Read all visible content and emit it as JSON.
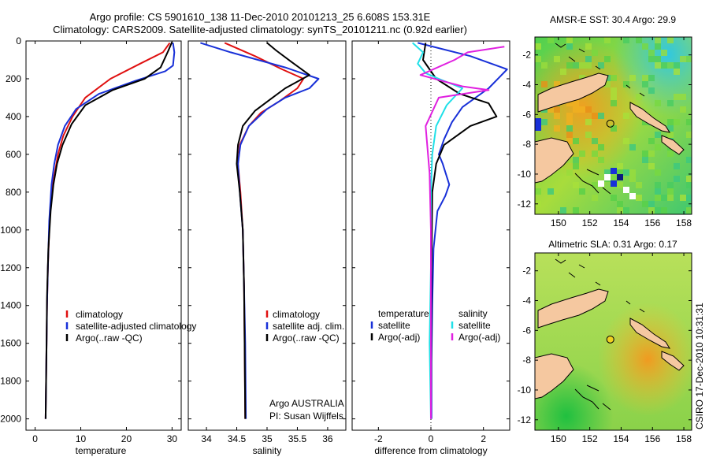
{
  "header": {
    "line1": "Argo profile: CS 5901610_138 11-Dec-2010 20101213_25 6.608S 153.31E",
    "line2": "Climatology: CARS2009. Satellite-adjusted climatology: synTS_20101211.nc (0.92d earlier)"
  },
  "side_label": "CSIRO 17-Dec-2010 10:31:31",
  "colors": {
    "red": "#e01010",
    "blue": "#1830d8",
    "black": "#000000",
    "cyan": "#20e0e8",
    "magenta": "#e020e0",
    "land": "#f5c8a0"
  },
  "chart_data": [
    {
      "type": "line",
      "xlabel": "temperature",
      "xlim": [
        -2,
        32
      ],
      "ylim": [
        0,
        2060
      ],
      "xticks": [
        0,
        10,
        20,
        30
      ],
      "yticks": [
        0,
        200,
        400,
        600,
        800,
        1000,
        1200,
        1400,
        1600,
        1800,
        2000
      ],
      "legend": [
        "climatology",
        "satellite-adjusted climatology",
        "Argo(..raw -QC)"
      ],
      "series": [
        {
          "name": "climatology",
          "color": "red",
          "x": [
            29.5,
            28,
            23,
            16.5,
            11,
            8.2,
            6.2,
            5,
            4.3,
            3.6,
            3.1,
            2.8,
            2.6,
            2.5,
            2.4,
            2.3
          ],
          "y": [
            10,
            60,
            120,
            200,
            300,
            400,
            500,
            600,
            700,
            800,
            1000,
            1200,
            1400,
            1600,
            1800,
            2000
          ]
        },
        {
          "name": "satellite-adjusted climatology",
          "color": "blue",
          "x": [
            30.2,
            30.5,
            30.2,
            28.5,
            22,
            14,
            9,
            6.5,
            5,
            4.2,
            3.6,
            3.1,
            2.8,
            2.6,
            2.5,
            2.4,
            2.3
          ],
          "y": [
            10,
            60,
            130,
            160,
            210,
            280,
            360,
            450,
            550,
            650,
            760,
            950,
            1200,
            1400,
            1600,
            1800,
            2000
          ]
        },
        {
          "name": "Argo(..raw -QC)",
          "color": "black",
          "x": [
            30,
            29.2,
            27.5,
            24,
            17,
            11,
            8,
            6,
            4.8,
            4,
            3.4,
            2.9,
            2.6,
            2.5,
            2.4,
            2.3
          ],
          "y": [
            5,
            50,
            140,
            200,
            260,
            340,
            440,
            550,
            650,
            760,
            900,
            1100,
            1350,
            1600,
            1800,
            2000
          ]
        }
      ]
    },
    {
      "type": "line",
      "xlabel": "salinity",
      "xlim": [
        33.7,
        36.3
      ],
      "ylim": [
        0,
        2060
      ],
      "xticks": [
        34,
        34.5,
        35,
        35.5,
        36
      ],
      "yticks": [
        0,
        200,
        400,
        600,
        800,
        1000,
        1200,
        1400,
        1600,
        1800,
        2000
      ],
      "legend": [
        "climatology",
        "satellite adj. clim.",
        "Argo(..raw -QC)"
      ],
      "annotation": [
        "Argo AUSTRALIA",
        "PI: Susan Wijffels"
      ],
      "series": [
        {
          "name": "climatology",
          "color": "red",
          "x": [
            34.3,
            34.8,
            35.25,
            35.6,
            35.5,
            35.2,
            34.9,
            34.7,
            34.55,
            34.52,
            34.56,
            34.6,
            34.62,
            34.63,
            34.64
          ],
          "y": [
            10,
            80,
            150,
            200,
            250,
            320,
            380,
            450,
            550,
            650,
            800,
            1000,
            1300,
            1600,
            2000
          ]
        },
        {
          "name": "satellite adj. clim.",
          "color": "blue",
          "x": [
            33.9,
            34.4,
            35.3,
            35.85,
            35.7,
            35.3,
            35.0,
            34.7,
            34.56,
            34.52,
            34.55,
            34.6,
            34.62,
            34.64,
            34.65
          ],
          "y": [
            10,
            60,
            140,
            200,
            250,
            300,
            360,
            450,
            550,
            650,
            800,
            1000,
            1300,
            1600,
            2000
          ]
        },
        {
          "name": "Argo(..raw -QC)",
          "color": "black",
          "x": [
            35.0,
            35.15,
            35.4,
            35.7,
            35.3,
            35.05,
            34.8,
            34.6,
            34.52,
            34.5,
            34.55,
            34.6,
            34.62,
            34.63,
            34.64
          ],
          "y": [
            10,
            50,
            110,
            180,
            250,
            310,
            370,
            450,
            550,
            650,
            800,
            1000,
            1300,
            1600,
            2000
          ]
        }
      ]
    },
    {
      "type": "line",
      "xlabel": "difference from climatology",
      "xlim": [
        -3,
        3
      ],
      "ylim": [
        0,
        2060
      ],
      "xticks": [
        -2,
        0,
        2
      ],
      "yticks": [
        0,
        200,
        400,
        600,
        800,
        1000,
        1200,
        1400,
        1600,
        1800,
        2000
      ],
      "legend_titles": [
        "temperature",
        "salinity"
      ],
      "legend": [
        "satellite",
        "Argo(-adj)",
        "satellite",
        "Argo(-adj)"
      ],
      "series": [
        {
          "name": "temperature satellite",
          "color": "blue",
          "x": [
            -0.5,
            1.5,
            2.9,
            2.2,
            1.2,
            0.8,
            0.5,
            0.3,
            0.45,
            0.7,
            0.55,
            0.25,
            0.1,
            0.05,
            0.02,
            0.02
          ],
          "y": [
            10,
            80,
            150,
            250,
            350,
            430,
            520,
            600,
            650,
            760,
            820,
            900,
            1100,
            1400,
            1700,
            2000
          ]
        },
        {
          "name": "temperature Argo(-adj)",
          "color": "black",
          "x": [
            -0.2,
            -0.3,
            0.2,
            1.1,
            2.2,
            2.5,
            1.5,
            0.5,
            0.2,
            0.05,
            0.02,
            0.0
          ],
          "y": [
            10,
            100,
            200,
            280,
            330,
            400,
            450,
            550,
            650,
            800,
            1200,
            2000
          ]
        },
        {
          "name": "salinity satellite",
          "color": "cyan",
          "x": [
            -0.7,
            -0.3,
            -0.5,
            -0.2,
            0.3,
            1.2,
            0.6,
            0.2,
            0.05,
            0.0,
            0.0,
            -0.05,
            0.0
          ],
          "y": [
            10,
            60,
            120,
            170,
            200,
            250,
            340,
            450,
            600,
            800,
            1200,
            1600,
            2000
          ]
        },
        {
          "name": "salinity Argo(-adj)",
          "color": "magenta",
          "x": [
            2.8,
            1.4,
            0.9,
            -0.4,
            1.2,
            2.2,
            0.3,
            -0.2,
            -0.05,
            0.0,
            0.0
          ],
          "y": [
            30,
            60,
            100,
            180,
            240,
            260,
            300,
            450,
            700,
            1000,
            2000
          ]
        }
      ]
    },
    {
      "type": "heatmap",
      "title": "AMSR-E SST: 30.4  Argo: 29.9",
      "xlim": [
        148.5,
        158.5
      ],
      "ylim": [
        -12.7,
        -0.8
      ],
      "xticks": [
        150,
        152,
        154,
        156,
        158
      ],
      "yticks": [
        -2,
        -4,
        -6,
        -8,
        -10,
        -12
      ],
      "marker": {
        "lon": 153.31,
        "lat": -6.608
      }
    },
    {
      "type": "heatmap",
      "title": "Altimetric SLA: 0.31  Argo: 0.17",
      "xlim": [
        148.5,
        158.5
      ],
      "ylim": [
        -12.7,
        -0.8
      ],
      "xticks": [
        150,
        152,
        154,
        156,
        158
      ],
      "yticks": [
        -2,
        -4,
        -6,
        -8,
        -10,
        -12
      ],
      "marker": {
        "lon": 153.31,
        "lat": -6.608
      }
    }
  ]
}
